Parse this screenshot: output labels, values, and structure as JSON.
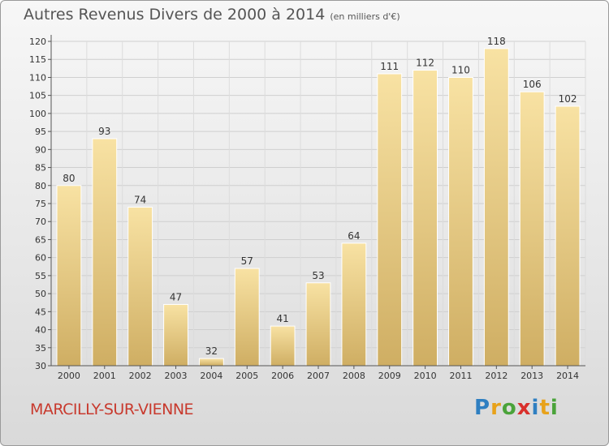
{
  "title": "Autres Revenus Divers de 2000 à 2014",
  "subtitle": "(en milliers d'€)",
  "commune": "MARCILLY-SUR-VIENNE",
  "logo": {
    "letters": [
      "P",
      "r",
      "o",
      "x",
      "i",
      "t",
      "i"
    ],
    "colors": [
      "#2f7fc1",
      "#e8a21a",
      "#4aa33a",
      "#d9302c",
      "#2f7fc1",
      "#e8a21a",
      "#4aa33a"
    ]
  },
  "colors": {
    "bar_light": "#f6dd99",
    "bar_dark": "#d1b266",
    "grid": "#cccccc",
    "title": "#555555",
    "commune": "#c83a2e"
  },
  "chart_data": {
    "type": "bar",
    "categories": [
      "2000",
      "2001",
      "2002",
      "2003",
      "2004",
      "2005",
      "2006",
      "2007",
      "2008",
      "2009",
      "2010",
      "2011",
      "2012",
      "2013",
      "2014"
    ],
    "values": [
      80,
      93,
      74,
      47,
      32,
      57,
      41,
      53,
      64,
      111,
      112,
      110,
      118,
      106,
      102
    ],
    "title": "Autres Revenus Divers de 2000 à 2014",
    "subtitle": "(en milliers d'€)",
    "xlabel": "",
    "ylabel": "",
    "ylim": [
      30,
      120
    ],
    "yticks": [
      30,
      35,
      40,
      45,
      50,
      55,
      60,
      65,
      70,
      75,
      80,
      85,
      90,
      95,
      100,
      105,
      110,
      115,
      120
    ],
    "grid": true
  }
}
